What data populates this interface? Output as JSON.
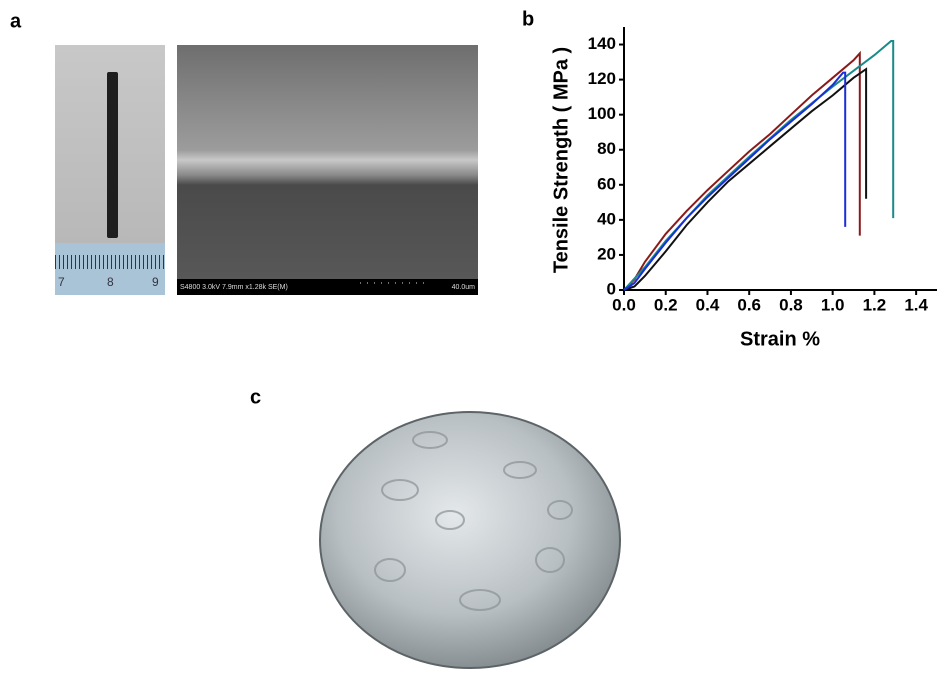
{
  "panel_labels": [
    "a",
    "b",
    "c"
  ],
  "panel_a": {
    "ruler_labels": [
      "7",
      "8",
      "9"
    ],
    "sem_info": "S4800 3.0kV 7.9mm x1.28k SE(M)",
    "scale_bar": "40.0um"
  },
  "chart_data": {
    "type": "line",
    "xlabel": "Strain %",
    "ylabel": "Tensile Strength ( MPa )",
    "xlim": [
      0,
      1.5
    ],
    "ylim": [
      0,
      150
    ],
    "xticks": [
      {
        "value": 0,
        "label": "0.0"
      },
      0.2,
      0.4,
      0.6,
      0.8,
      {
        "value": 1,
        "label": "1.0"
      },
      1.2,
      1.4
    ],
    "yticks": [
      0,
      20,
      40,
      60,
      80,
      100,
      120,
      140
    ],
    "grid": false,
    "series": [
      {
        "color": "#8b1a1a",
        "x": [
          0,
          0.05,
          0.1,
          0.2,
          0.3,
          0.4,
          0.5,
          0.6,
          0.7,
          0.8,
          0.9,
          1.0,
          1.1,
          1.13,
          1.13
        ],
        "values": [
          0,
          6,
          16,
          32,
          45,
          57,
          68,
          79,
          89,
          100,
          111,
          121,
          131,
          135,
          31
        ]
      },
      {
        "color": "#1a8a8a",
        "x": [
          0,
          0.1,
          0.2,
          0.4,
          0.6,
          0.8,
          1.0,
          1.1,
          1.2,
          1.28,
          1.29,
          1.29
        ],
        "values": [
          0,
          13,
          28,
          54,
          76,
          97,
          116,
          125,
          134,
          142,
          142,
          41
        ]
      },
      {
        "color": "#111111",
        "x": [
          0,
          0.05,
          0.1,
          0.2,
          0.3,
          0.4,
          0.5,
          0.6,
          0.7,
          0.8,
          0.9,
          1.0,
          1.1,
          1.16,
          1.16
        ],
        "values": [
          0,
          2,
          8,
          22,
          37,
          50,
          62,
          72,
          82,
          92,
          102,
          111,
          121,
          126,
          52
        ]
      },
      {
        "color": "#1a2fd6",
        "x": [
          0,
          0.05,
          0.1,
          0.2,
          0.3,
          0.4,
          0.5,
          0.6,
          0.7,
          0.8,
          0.9,
          1.0,
          1.05,
          1.06,
          1.06
        ],
        "values": [
          0,
          4,
          12,
          27,
          41,
          53,
          64,
          75,
          86,
          96,
          106,
          117,
          124,
          124,
          36
        ]
      }
    ]
  }
}
